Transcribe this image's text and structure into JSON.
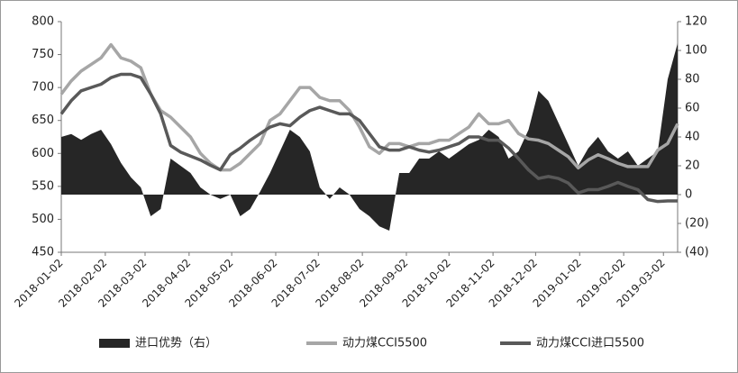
{
  "chart_data": {
    "type": "line",
    "x": [
      "2018-01-02",
      "2018-01-09",
      "2018-01-16",
      "2018-01-23",
      "2018-01-30",
      "2018-02-06",
      "2018-02-13",
      "2018-02-20",
      "2018-02-27",
      "2018-03-06",
      "2018-03-13",
      "2018-03-20",
      "2018-03-27",
      "2018-04-03",
      "2018-04-10",
      "2018-04-17",
      "2018-04-24",
      "2018-05-01",
      "2018-05-08",
      "2018-05-15",
      "2018-05-22",
      "2018-05-29",
      "2018-06-05",
      "2018-06-12",
      "2018-06-19",
      "2018-06-26",
      "2018-07-03",
      "2018-07-10",
      "2018-07-17",
      "2018-07-24",
      "2018-07-31",
      "2018-08-07",
      "2018-08-14",
      "2018-08-21",
      "2018-08-28",
      "2018-09-04",
      "2018-09-11",
      "2018-09-18",
      "2018-09-25",
      "2018-10-02",
      "2018-10-09",
      "2018-10-16",
      "2018-10-23",
      "2018-10-30",
      "2018-11-06",
      "2018-11-13",
      "2018-11-20",
      "2018-11-27",
      "2018-12-04",
      "2018-12-11",
      "2018-12-18",
      "2018-12-25",
      "2019-01-01",
      "2019-01-08",
      "2019-01-15",
      "2019-01-22",
      "2019-01-29",
      "2019-02-05",
      "2019-02-12",
      "2019-02-19",
      "2019-02-26",
      "2019-03-05",
      "2019-03-12"
    ],
    "xlim": [
      "2018-01-02",
      "2019-03-12"
    ],
    "xticks": [
      "2018-01-02",
      "2018-02-02",
      "2018-03-02",
      "2018-04-02",
      "2018-05-02",
      "2018-06-02",
      "2018-07-02",
      "2018-08-02",
      "2018-09-02",
      "2018-10-02",
      "2018-11-02",
      "2018-12-02",
      "2019-01-02",
      "2019-02-02",
      "2019-03-02"
    ],
    "ylim": [
      450,
      800
    ],
    "yticks": [
      450,
      500,
      550,
      600,
      650,
      700,
      750,
      800
    ],
    "y2lim": [
      -40,
      120
    ],
    "y2ticks": [
      {
        "value": -40,
        "label": "(40)"
      },
      {
        "value": -20,
        "label": "(20)"
      },
      0,
      20,
      40,
      60,
      80,
      100,
      120
    ],
    "legend": "bottom",
    "series": [
      {
        "name": "进口优势（右）",
        "type": "area",
        "axis": "y2",
        "color": "#262626",
        "values": [
          40,
          42,
          38,
          42,
          45,
          35,
          22,
          12,
          5,
          -15,
          -10,
          25,
          20,
          15,
          5,
          0,
          -3,
          0,
          -15,
          -10,
          2,
          15,
          30,
          45,
          40,
          30,
          5,
          -3,
          5,
          0,
          -10,
          -15,
          -22,
          -25,
          15,
          15,
          25,
          25,
          30,
          25,
          30,
          35,
          38,
          45,
          40,
          25,
          30,
          45,
          72,
          65,
          50,
          35,
          20,
          32,
          40,
          30,
          25,
          30,
          20,
          25,
          30,
          80,
          105
        ]
      },
      {
        "name": "动力煤CCI5500",
        "type": "line",
        "color": "#a6a6a6",
        "values": [
          690,
          710,
          725,
          735,
          745,
          765,
          745,
          740,
          730,
          690,
          665,
          655,
          640,
          625,
          600,
          585,
          575,
          575,
          585,
          600,
          615,
          650,
          660,
          680,
          700,
          700,
          685,
          680,
          680,
          665,
          640,
          610,
          600,
          615,
          615,
          610,
          615,
          615,
          620,
          620,
          630,
          640,
          660,
          645,
          645,
          650,
          630,
          622,
          620,
          615,
          605,
          595,
          578,
          590,
          598,
          592,
          585,
          580,
          580,
          580,
          605,
          615,
          645
        ]
      },
      {
        "name": "动力煤CCI进口5500",
        "type": "line",
        "color": "#595959",
        "values": [
          660,
          680,
          695,
          700,
          705,
          715,
          720,
          720,
          715,
          690,
          660,
          612,
          602,
          596,
          590,
          582,
          575,
          598,
          608,
          620,
          630,
          640,
          645,
          642,
          655,
          665,
          670,
          665,
          660,
          660,
          650,
          630,
          610,
          605,
          605,
          610,
          605,
          602,
          605,
          610,
          615,
          625,
          625,
          620,
          620,
          608,
          592,
          575,
          562,
          565,
          562,
          555,
          540,
          545,
          545,
          550,
          556,
          550,
          545,
          530,
          527,
          528,
          528
        ]
      }
    ]
  }
}
